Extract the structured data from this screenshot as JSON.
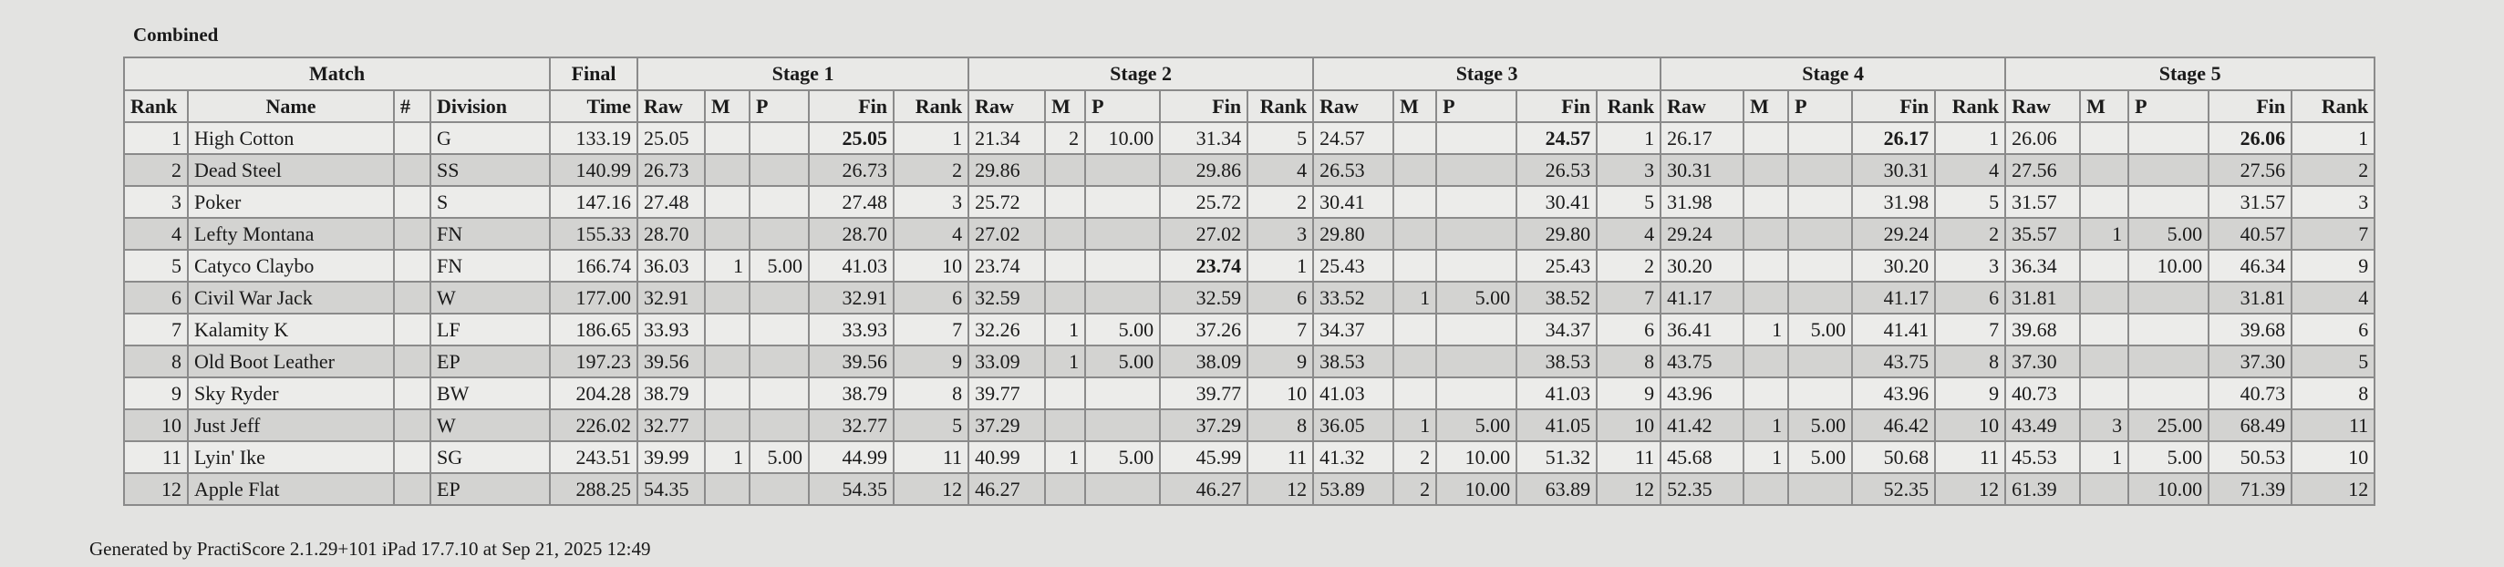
{
  "title": "Combined",
  "footer": "Generated by PractiScore 2.1.29+101 iPad 17.7.10 at Sep 21, 2025 12:49",
  "groups": {
    "match": "Match",
    "final": "Final",
    "stages": [
      "Stage 1",
      "Stage 2",
      "Stage 3",
      "Stage 4",
      "Stage 5"
    ]
  },
  "columns": {
    "rank": "Rank",
    "name": "Name",
    "num": "#",
    "division": "Division",
    "time": "Time",
    "stage_cols": [
      "Raw",
      "M",
      "P",
      "Fin",
      "Rank"
    ]
  },
  "rows": [
    {
      "rank": "1",
      "name": "High Cotton",
      "num": "",
      "division": "G",
      "time": "133.19",
      "stages": [
        [
          "25.05",
          "",
          "",
          "25.05",
          "1"
        ],
        [
          "21.34",
          "2",
          "10.00",
          "31.34",
          "5"
        ],
        [
          "24.57",
          "",
          "",
          "24.57",
          "1"
        ],
        [
          "26.17",
          "",
          "",
          "26.17",
          "1"
        ],
        [
          "26.06",
          "",
          "",
          "26.06",
          "1"
        ]
      ]
    },
    {
      "rank": "2",
      "name": "Dead Steel",
      "num": "",
      "division": "SS",
      "time": "140.99",
      "stages": [
        [
          "26.73",
          "",
          "",
          "26.73",
          "2"
        ],
        [
          "29.86",
          "",
          "",
          "29.86",
          "4"
        ],
        [
          "26.53",
          "",
          "",
          "26.53",
          "3"
        ],
        [
          "30.31",
          "",
          "",
          "30.31",
          "4"
        ],
        [
          "27.56",
          "",
          "",
          "27.56",
          "2"
        ]
      ]
    },
    {
      "rank": "3",
      "name": "Poker",
      "num": "",
      "division": "S",
      "time": "147.16",
      "stages": [
        [
          "27.48",
          "",
          "",
          "27.48",
          "3"
        ],
        [
          "25.72",
          "",
          "",
          "25.72",
          "2"
        ],
        [
          "30.41",
          "",
          "",
          "30.41",
          "5"
        ],
        [
          "31.98",
          "",
          "",
          "31.98",
          "5"
        ],
        [
          "31.57",
          "",
          "",
          "31.57",
          "3"
        ]
      ]
    },
    {
      "rank": "4",
      "name": "Lefty Montana",
      "num": "",
      "division": "FN",
      "time": "155.33",
      "stages": [
        [
          "28.70",
          "",
          "",
          "28.70",
          "4"
        ],
        [
          "27.02",
          "",
          "",
          "27.02",
          "3"
        ],
        [
          "29.80",
          "",
          "",
          "29.80",
          "4"
        ],
        [
          "29.24",
          "",
          "",
          "29.24",
          "2"
        ],
        [
          "35.57",
          "1",
          "5.00",
          "40.57",
          "7"
        ]
      ]
    },
    {
      "rank": "5",
      "name": "Catyco Claybo",
      "num": "",
      "division": "FN",
      "time": "166.74",
      "stages": [
        [
          "36.03",
          "1",
          "5.00",
          "41.03",
          "10"
        ],
        [
          "23.74",
          "",
          "",
          "23.74",
          "1"
        ],
        [
          "25.43",
          "",
          "",
          "25.43",
          "2"
        ],
        [
          "30.20",
          "",
          "",
          "30.20",
          "3"
        ],
        [
          "36.34",
          "",
          "10.00",
          "46.34",
          "9"
        ]
      ]
    },
    {
      "rank": "6",
      "name": "Civil War Jack",
      "num": "",
      "division": "W",
      "time": "177.00",
      "stages": [
        [
          "32.91",
          "",
          "",
          "32.91",
          "6"
        ],
        [
          "32.59",
          "",
          "",
          "32.59",
          "6"
        ],
        [
          "33.52",
          "1",
          "5.00",
          "38.52",
          "7"
        ],
        [
          "41.17",
          "",
          "",
          "41.17",
          "6"
        ],
        [
          "31.81",
          "",
          "",
          "31.81",
          "4"
        ]
      ]
    },
    {
      "rank": "7",
      "name": "Kalamity K",
      "num": "",
      "division": "LF",
      "time": "186.65",
      "stages": [
        [
          "33.93",
          "",
          "",
          "33.93",
          "7"
        ],
        [
          "32.26",
          "1",
          "5.00",
          "37.26",
          "7"
        ],
        [
          "34.37",
          "",
          "",
          "34.37",
          "6"
        ],
        [
          "36.41",
          "1",
          "5.00",
          "41.41",
          "7"
        ],
        [
          "39.68",
          "",
          "",
          "39.68",
          "6"
        ]
      ]
    },
    {
      "rank": "8",
      "name": "Old Boot Leather",
      "num": "",
      "division": "EP",
      "time": "197.23",
      "stages": [
        [
          "39.56",
          "",
          "",
          "39.56",
          "9"
        ],
        [
          "33.09",
          "1",
          "5.00",
          "38.09",
          "9"
        ],
        [
          "38.53",
          "",
          "",
          "38.53",
          "8"
        ],
        [
          "43.75",
          "",
          "",
          "43.75",
          "8"
        ],
        [
          "37.30",
          "",
          "",
          "37.30",
          "5"
        ]
      ]
    },
    {
      "rank": "9",
      "name": "Sky Ryder",
      "num": "",
      "division": "BW",
      "time": "204.28",
      "stages": [
        [
          "38.79",
          "",
          "",
          "38.79",
          "8"
        ],
        [
          "39.77",
          "",
          "",
          "39.77",
          "10"
        ],
        [
          "41.03",
          "",
          "",
          "41.03",
          "9"
        ],
        [
          "43.96",
          "",
          "",
          "43.96",
          "9"
        ],
        [
          "40.73",
          "",
          "",
          "40.73",
          "8"
        ]
      ]
    },
    {
      "rank": "10",
      "name": "Just Jeff",
      "num": "",
      "division": "W",
      "time": "226.02",
      "stages": [
        [
          "32.77",
          "",
          "",
          "32.77",
          "5"
        ],
        [
          "37.29",
          "",
          "",
          "37.29",
          "8"
        ],
        [
          "36.05",
          "1",
          "5.00",
          "41.05",
          "10"
        ],
        [
          "41.42",
          "1",
          "5.00",
          "46.42",
          "10"
        ],
        [
          "43.49",
          "3",
          "25.00",
          "68.49",
          "11"
        ]
      ]
    },
    {
      "rank": "11",
      "name": "Lyin' Ike",
      "num": "",
      "division": "SG",
      "time": "243.51",
      "stages": [
        [
          "39.99",
          "1",
          "5.00",
          "44.99",
          "11"
        ],
        [
          "40.99",
          "1",
          "5.00",
          "45.99",
          "11"
        ],
        [
          "41.32",
          "2",
          "10.00",
          "51.32",
          "11"
        ],
        [
          "45.68",
          "1",
          "5.00",
          "50.68",
          "11"
        ],
        [
          "45.53",
          "1",
          "5.00",
          "50.53",
          "10"
        ]
      ]
    },
    {
      "rank": "12",
      "name": "Apple Flat",
      "num": "",
      "division": "EP",
      "time": "288.25",
      "stages": [
        [
          "54.35",
          "",
          "",
          "54.35",
          "12"
        ],
        [
          "46.27",
          "",
          "",
          "46.27",
          "12"
        ],
        [
          "53.89",
          "2",
          "10.00",
          "63.89",
          "12"
        ],
        [
          "52.35",
          "",
          "",
          "52.35",
          "12"
        ],
        [
          "61.39",
          "",
          "10.00",
          "71.39",
          "12"
        ]
      ]
    }
  ]
}
